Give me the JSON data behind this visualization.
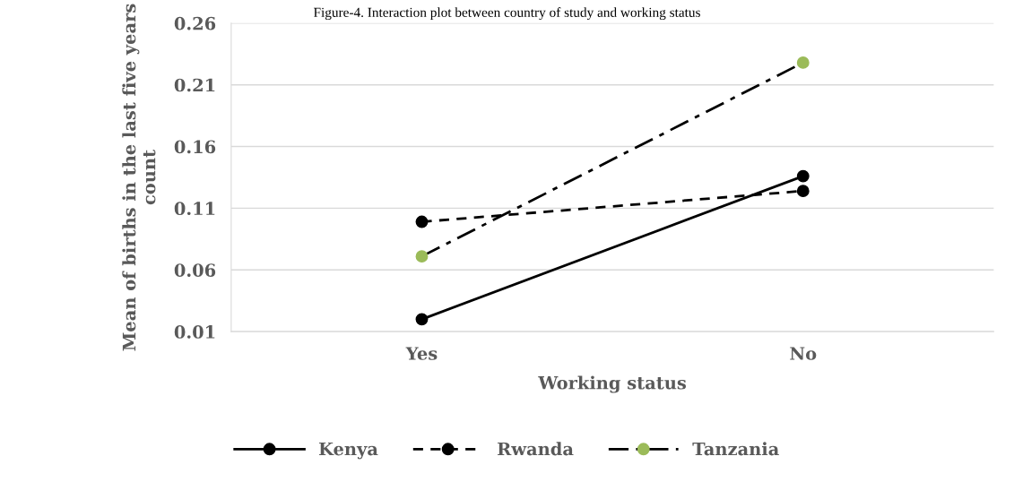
{
  "chart_data": {
    "type": "line",
    "title": "Figure-4. Interaction plot between country of study and working status",
    "xlabel": "Working status",
    "ylabel": "Mean of births in the last five years count",
    "categories": [
      "Yes",
      "No"
    ],
    "series": [
      {
        "name": "Kenya",
        "color": "#000000",
        "line_style": "solid",
        "values": [
          0.02,
          0.136
        ]
      },
      {
        "name": "Rwanda",
        "color": "#000000",
        "line_style": "dashed",
        "values": [
          0.099,
          0.124
        ]
      },
      {
        "name": "Tanzania",
        "color": "#000000",
        "colors": [
          "#9bbb59",
          "#9bbb59"
        ],
        "line_style": "dashdot",
        "values": [
          0.071,
          0.228
        ]
      }
    ],
    "ylim": [
      0.01,
      0.26
    ],
    "yticks": [
      0.01,
      0.06,
      0.11,
      0.16,
      0.21,
      0.26
    ],
    "grid": "y",
    "legend": "bottom",
    "marker": "circle"
  }
}
